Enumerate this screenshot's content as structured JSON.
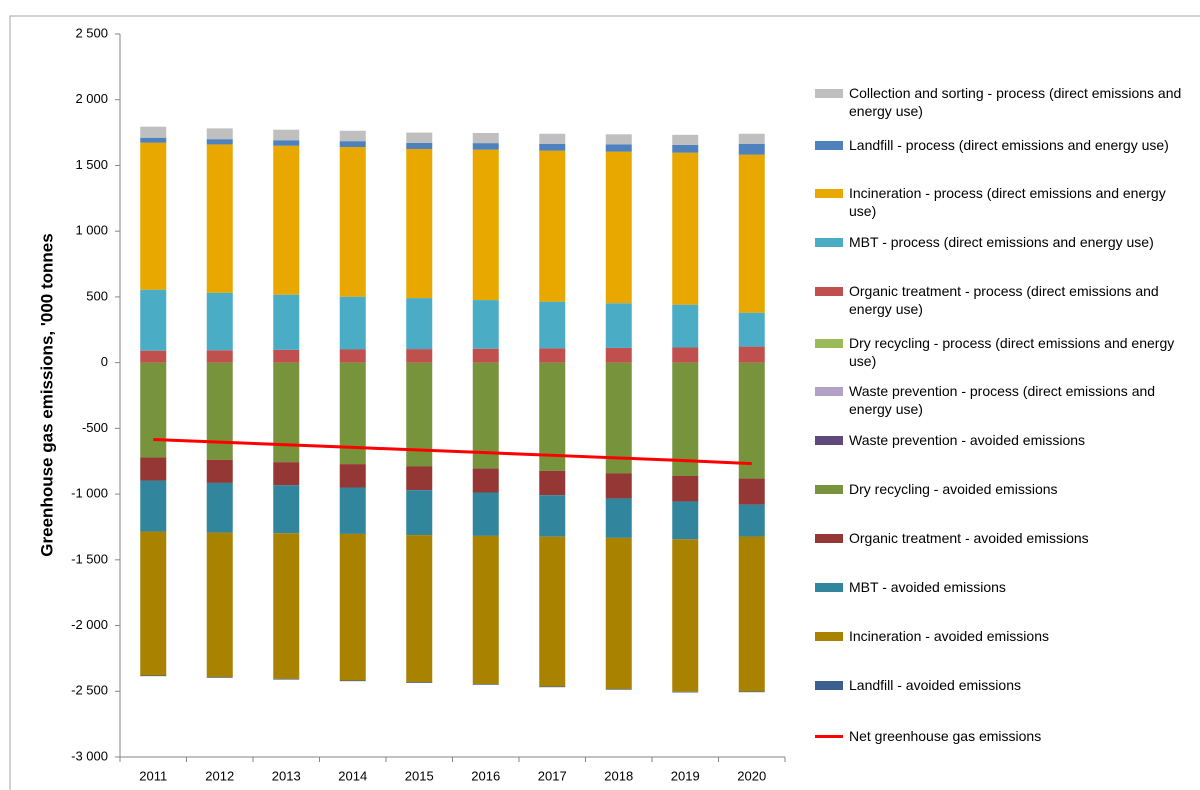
{
  "chart_data": {
    "type": "bar",
    "y_label": "Greenhouse gas emissions, '000 tonnes",
    "categories": [
      "2011",
      "2012",
      "2013",
      "2014",
      "2015",
      "2016",
      "2017",
      "2018",
      "2019",
      "2020"
    ],
    "ylim": [
      -3000,
      2500
    ],
    "yticks": [
      {
        "value": -3000,
        "label": "-3 000"
      },
      {
        "value": -2500,
        "label": "-2 500"
      },
      {
        "value": -2000,
        "label": "-2 000"
      },
      {
        "value": -1500,
        "label": "-1 500"
      },
      {
        "value": -1000,
        "label": "-1 000"
      },
      -500,
      0,
      500,
      {
        "value": 1000,
        "label": "1 000"
      },
      {
        "value": 1500,
        "label": "1 500"
      },
      {
        "value": 2000,
        "label": "2 000"
      },
      {
        "value": 2500,
        "label": "2 500"
      }
    ],
    "grid": false,
    "series": [
      {
        "name": "Collection and sorting - process (direct emissions and energy use)",
        "color": "#bfbfbf",
        "values": [
          84,
          82,
          80,
          79,
          78,
          77,
          76,
          76,
          76,
          76
        ]
      },
      {
        "name": "Landfill - process (direct emissions and energy use)",
        "color": "#4f81bd",
        "values": [
          38,
          40,
          42,
          45,
          47,
          50,
          53,
          56,
          60,
          83
        ]
      },
      {
        "name": "Incineration - process (direct emissions and energy use)",
        "color": "#e9a800",
        "values": [
          1118,
          1128,
          1133,
          1138,
          1134,
          1144,
          1148,
          1153,
          1156,
          1202
        ]
      },
      {
        "name": "MBT - process (direct emissions and energy use)",
        "color": "#4bacc6",
        "values": [
          464,
          438,
          420,
          402,
          388,
          370,
          355,
          340,
          326,
          258
        ]
      },
      {
        "name": "Organic treatment - process (direct emissions and energy use)",
        "color": "#c0504d",
        "values": [
          91,
          94,
          97,
          100,
          103,
          106,
          109,
          112,
          115,
          122
        ]
      },
      {
        "name": "Dry recycling - process (direct emissions and energy use)",
        "color": "#9bbb59",
        "values": [
          0,
          0,
          0,
          0,
          0,
          0,
          0,
          0,
          0,
          0
        ]
      },
      {
        "name": "Waste prevention - process (direct emissions and energy use)",
        "color": "#b3a2c7",
        "values": [
          0,
          0,
          0,
          0,
          0,
          0,
          0,
          0,
          0,
          0
        ]
      },
      {
        "name": "Waste prevention - avoided emissions",
        "color": "#604a7b",
        "values": [
          0,
          0,
          0,
          0,
          0,
          0,
          0,
          0,
          0,
          0
        ]
      },
      {
        "name": "Dry recycling - avoided emissions",
        "color": "#77933c",
        "values": [
          -722,
          -740,
          -757,
          -772,
          -790,
          -806,
          -823,
          -843,
          -862,
          -882
        ]
      },
      {
        "name": "Organic treatment - avoided emissions",
        "color": "#953735",
        "values": [
          -175,
          -175,
          -176,
          -178,
          -180,
          -182,
          -185,
          -190,
          -195,
          -198
        ]
      },
      {
        "name": "MBT - avoided emissions",
        "color": "#31859c",
        "values": [
          -388,
          -378,
          -365,
          -353,
          -342,
          -330,
          -316,
          -300,
          -287,
          -243
        ]
      },
      {
        "name": "Incineration - avoided emissions",
        "color": "#a98200",
        "values": [
          -1095,
          -1100,
          -1108,
          -1115,
          -1120,
          -1128,
          -1140,
          -1150,
          -1160,
          -1179
        ]
      },
      {
        "name": "Landfill - avoided emissions",
        "color": "#3b5f8f",
        "values": [
          -5,
          -5,
          -5,
          -5,
          -5,
          -5,
          -5,
          -5,
          -5,
          -5
        ]
      },
      {
        "name": "Net greenhouse gas emissions",
        "color": "#ff0000",
        "type": "line",
        "values": [
          -585,
          -605,
          -625,
          -645,
          -665,
          -685,
          -705,
          -725,
          -745,
          -768
        ]
      }
    ]
  }
}
